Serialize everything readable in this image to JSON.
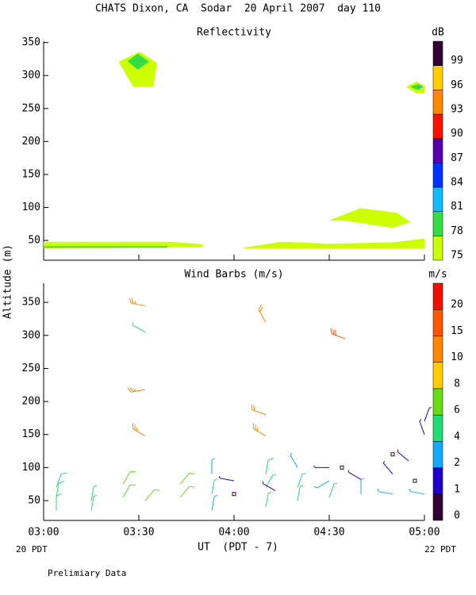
{
  "title": "CHATS Dixon, CA  Sodar  20 April 2007  day 110",
  "y_label": "Altitude (m)",
  "x_label": "UT  (PDT - 7)",
  "left_note": "20 PDT",
  "right_note": "22 PDT",
  "footer": "Prelimiary Data",
  "chart_data": [
    {
      "type": "contour",
      "title": "Reflectivity",
      "xlim": [
        180,
        300
      ],
      "ylim": [
        20,
        352
      ],
      "xticks": [
        180,
        210,
        240,
        270,
        300
      ],
      "yticks": [
        50,
        100,
        150,
        200,
        250,
        300,
        350
      ],
      "colorbar": {
        "label": "dB",
        "levels": [
          75,
          78,
          81,
          84,
          87,
          90,
          93,
          96,
          99
        ],
        "colors": [
          "#ccff00",
          "#33dd44",
          "#11bbff",
          "#0033ff",
          "#5500aa",
          "#ff1100",
          "#ff8800",
          "#ffcc00",
          "#330033"
        ]
      },
      "contours": [
        {
          "level": 75,
          "x": [
            203.6,
            210.2,
            215.7,
            214.5,
            208.2
          ],
          "y": [
            321,
            336,
            319,
            283,
            283
          ]
        },
        {
          "level": 78,
          "x": [
            206.4,
            209.7,
            213.2,
            209.7
          ],
          "y": [
            322,
            333,
            321,
            309
          ]
        },
        {
          "level": 75,
          "x": [
            294.2,
            297.5,
            300,
            300,
            297.5
          ],
          "y": [
            283,
            291,
            285,
            273,
            273
          ]
        },
        {
          "level": 78,
          "x": [
            295.5,
            298,
            299.5,
            298
          ],
          "y": [
            283,
            287,
            283,
            278
          ]
        },
        {
          "level": 81,
          "x": [
            297.5,
            299.2,
            299.2
          ],
          "y": [
            283,
            285,
            281
          ]
        },
        {
          "level": 75,
          "x": [
            269.8,
            279.9,
            291.2,
            295.7,
            289.9,
            275
          ],
          "y": [
            80,
            99,
            92,
            78,
            69,
            80
          ]
        },
        {
          "level": 75,
          "x": [
            180,
            220,
            230,
            230,
            180
          ],
          "y": [
            48,
            48,
            44,
            40,
            38
          ]
        },
        {
          "level": 78,
          "x": [
            180,
            219,
            219,
            180
          ],
          "y": [
            41,
            41,
            39,
            39
          ]
        },
        {
          "level": 75,
          "x": [
            242.9,
            255,
            270,
            290,
            300,
            300,
            242.9
          ],
          "y": [
            39,
            48,
            45,
            47,
            53,
            38,
            38
          ]
        }
      ]
    },
    {
      "type": "barbs",
      "title": "Wind Barbs (m/s)",
      "xlim": [
        180,
        300
      ],
      "ylim": [
        20,
        379
      ],
      "xticks": [
        {
          "value": 180,
          "label": "03:00"
        },
        {
          "value": 210,
          "label": "03:30"
        },
        {
          "value": 240,
          "label": "04:00"
        },
        {
          "value": 270,
          "label": "04:30"
        },
        {
          "value": 300,
          "label": "05:00"
        }
      ],
      "yticks": [
        50,
        100,
        150,
        200,
        250,
        300,
        350
      ],
      "colorbar": {
        "label": "m/s",
        "levels": [
          0,
          1,
          2,
          4,
          6,
          8,
          10,
          15,
          20
        ],
        "colors": [
          "#330033",
          "#2200cc",
          "#11aaff",
          "#22dd77",
          "#66dd11",
          "#ffcc00",
          "#ff8800",
          "#ff5500",
          "#ee1100"
        ]
      },
      "barbs": {
        "x": [
          184,
          184,
          184,
          195,
          195,
          205,
          205,
          212,
          212,
          212,
          212,
          212,
          223,
          223,
          233,
          233,
          233,
          240,
          240,
          250,
          250,
          250,
          250,
          250,
          250,
          253,
          260,
          260,
          260,
          270,
          270,
          270,
          274,
          275,
          280,
          280,
          290,
          290,
          290,
          295,
          297,
          300,
          300,
          300
        ],
        "y": [
          70,
          55,
          35,
          50,
          35,
          75,
          55,
          345,
          305,
          218,
          148,
          50,
          75,
          55,
          90,
          60,
          35,
          80,
          60,
          90,
          70,
          40,
          320,
          180,
          148,
          65,
          100,
          70,
          50,
          100,
          80,
          55,
          100,
          295,
          82,
          60,
          90,
          60,
          120,
          110,
          80,
          170,
          150,
          60
        ],
        "speed": [
          5,
          5,
          5,
          4,
          4,
          6,
          7,
          13,
          4,
          13,
          13,
          6,
          6,
          7,
          3,
          4,
          3,
          1.5,
          0,
          5,
          4,
          4,
          12,
          11,
          14,
          1.5,
          2,
          4,
          4,
          1.5,
          3,
          4,
          0,
          17,
          1.5,
          3,
          1.5,
          3,
          0,
          1.5,
          0,
          1.5,
          1.5,
          3
        ],
        "direction": [
          20,
          10,
          0,
          10,
          10,
          30,
          30,
          280,
          300,
          260,
          300,
          40,
          40,
          40,
          0,
          10,
          10,
          280,
          0,
          10,
          30,
          10,
          330,
          290,
          300,
          300,
          330,
          20,
          10,
          270,
          240,
          20,
          0,
          290,
          300,
          0,
          320,
          280,
          0,
          310,
          0,
          20,
          340,
          280
        ]
      }
    }
  ]
}
